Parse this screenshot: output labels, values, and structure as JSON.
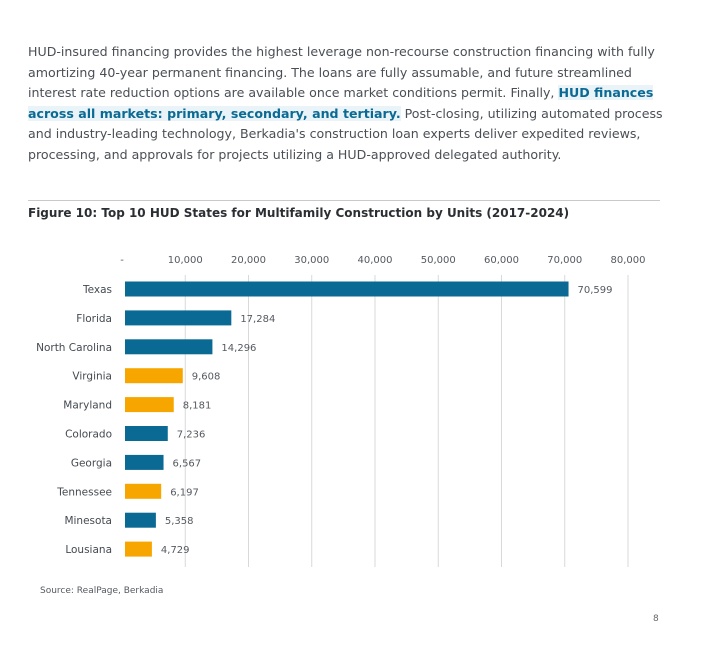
{
  "intro": {
    "text_before": "HUD-insured financing provides the highest leverage non-recourse construction financing with fully amortizing 40-year permanent financing. The loans are fully assumable, and future streamlined interest rate reduction options are available once market conditions permit. Finally, ",
    "highlight": "HUD finances across all markets: primary, secondary, and tertiary.",
    "text_after": " Post-closing, utilizing automated process and industry-leading technology, Berkadia's construction loan experts deliver expedited reviews, processing, and approvals for projects utilizing a HUD-approved delegated authority."
  },
  "figure": {
    "title": "Figure 10: Top 10 HUD States for Multifamily Construction by Units (2017-2024)",
    "source": "Source: RealPage, Berkadia"
  },
  "page_number": "8",
  "chart_data": {
    "type": "bar",
    "orientation": "horizontal",
    "title": "Figure 10: Top 10 HUD States for Multifamily Construction by Units (2017-2024)",
    "xlabel": "",
    "ylabel": "",
    "xlim": [
      0,
      80000
    ],
    "x_ticks": [
      0,
      10000,
      20000,
      30000,
      40000,
      50000,
      60000,
      70000,
      80000
    ],
    "x_tick_labels": [
      "-",
      "10,000",
      "20,000",
      "30,000",
      "40,000",
      "50,000",
      "60,000",
      "70,000",
      "80,000"
    ],
    "axis_position": "top",
    "grid": "vertical",
    "categories": [
      "Texas",
      "Florida",
      "North Carolina",
      "Virginia",
      "Maryland",
      "Colorado",
      "Georgia",
      "Tennessee",
      "Minesota",
      "Lousiana"
    ],
    "values": [
      70599,
      17284,
      14296,
      9608,
      8181,
      7236,
      6567,
      6197,
      5358,
      4729
    ],
    "value_labels": [
      "70,599",
      "17,284",
      "14,296",
      "9,608",
      "8,181",
      "7,236",
      "6,567",
      "6,197",
      "5,358",
      "4,729"
    ],
    "bar_colors": [
      "#0b6a93",
      "#0b6a93",
      "#0b6a93",
      "#f7a600",
      "#f7a600",
      "#0b6a93",
      "#0b6a93",
      "#f7a600",
      "#0b6a93",
      "#f7a600"
    ],
    "colors": {
      "blue": "#0b6a93",
      "orange": "#f7a600",
      "grid": "#d9d9d9"
    }
  }
}
